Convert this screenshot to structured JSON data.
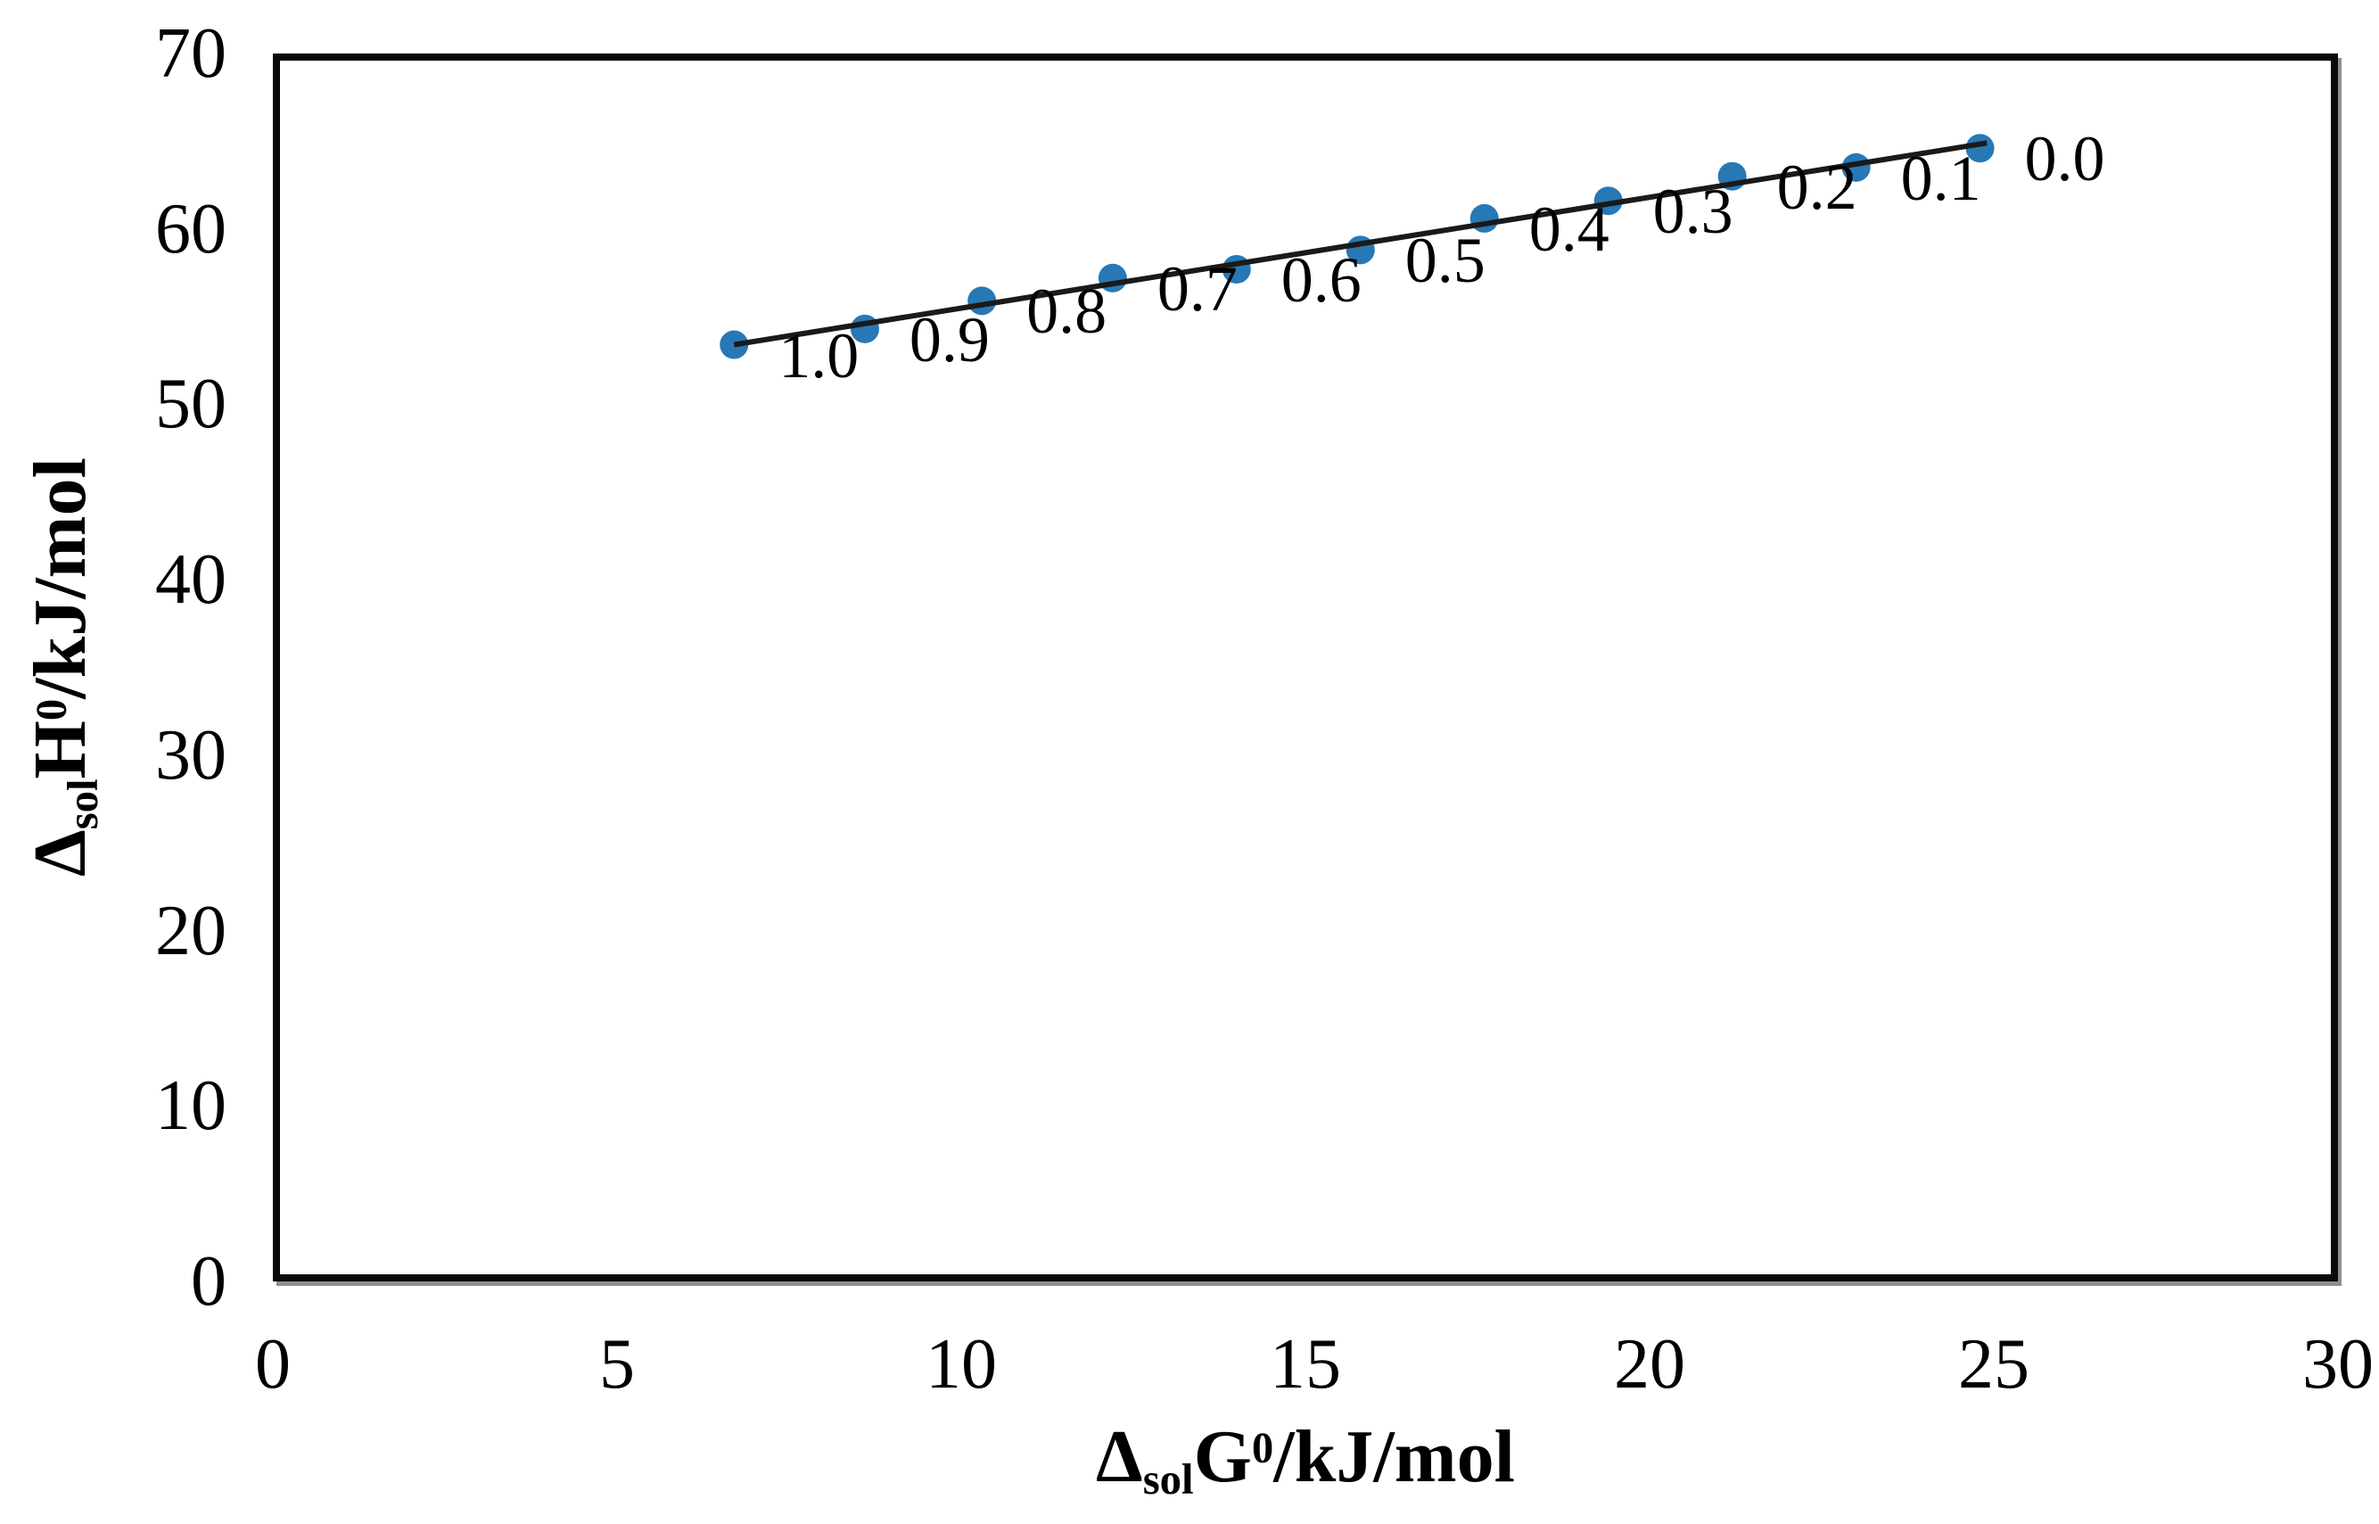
{
  "figure": {
    "background": "#ffffff",
    "frame_color": "#0a0a0a",
    "text_color": "#000000"
  },
  "chart_data": {
    "type": "scatter",
    "title": "",
    "grid": false,
    "legend": false,
    "x_axis": {
      "label_parts": {
        "delta": "Δ",
        "sub": "sol",
        "symbol": "G",
        "sup": "0",
        "rest": "/kJ/mol"
      },
      "min": 0,
      "max": 30,
      "ticks": [
        "0",
        "5",
        "10",
        "15",
        "20",
        "25",
        "30"
      ],
      "tick_values": [
        0,
        5,
        10,
        15,
        20,
        25,
        30
      ]
    },
    "y_axis": {
      "label_parts": {
        "delta": "Δ",
        "sub": "sol",
        "symbol": "H",
        "sup": "0",
        "rest": "/kJ/mol"
      },
      "min": 0,
      "max": 70,
      "ticks": [
        "0",
        "10",
        "20",
        "30",
        "40",
        "50",
        "60",
        "70"
      ],
      "tick_values": [
        0,
        10,
        20,
        30,
        40,
        50,
        60,
        70
      ]
    },
    "series": [
      {
        "name": "solvent-composition-points",
        "marker_color": "#2878B5",
        "marker_radius": 16,
        "points": [
          {
            "g": 6.7,
            "h": 53.4,
            "label": "1.0"
          },
          {
            "g": 8.6,
            "h": 54.3,
            "label": "0.9"
          },
          {
            "g": 10.3,
            "h": 55.9,
            "label": "0.8"
          },
          {
            "g": 12.2,
            "h": 57.2,
            "label": "0.7"
          },
          {
            "g": 14.0,
            "h": 57.7,
            "label": "0.6"
          },
          {
            "g": 15.8,
            "h": 58.8,
            "label": "0.5"
          },
          {
            "g": 17.6,
            "h": 60.6,
            "label": "0.4"
          },
          {
            "g": 19.4,
            "h": 61.6,
            "label": "0.3"
          },
          {
            "g": 21.2,
            "h": 63.0,
            "label": "0.2"
          },
          {
            "g": 23.0,
            "h": 63.5,
            "label": "0.1"
          },
          {
            "g": 24.8,
            "h": 64.6,
            "label": "0.0"
          }
        ]
      }
    ],
    "trendline": {
      "color": "#1a1a1a",
      "width": 6,
      "x1": 6.7,
      "y1": 53.4,
      "x2": 24.9,
      "y2": 64.9
    }
  }
}
